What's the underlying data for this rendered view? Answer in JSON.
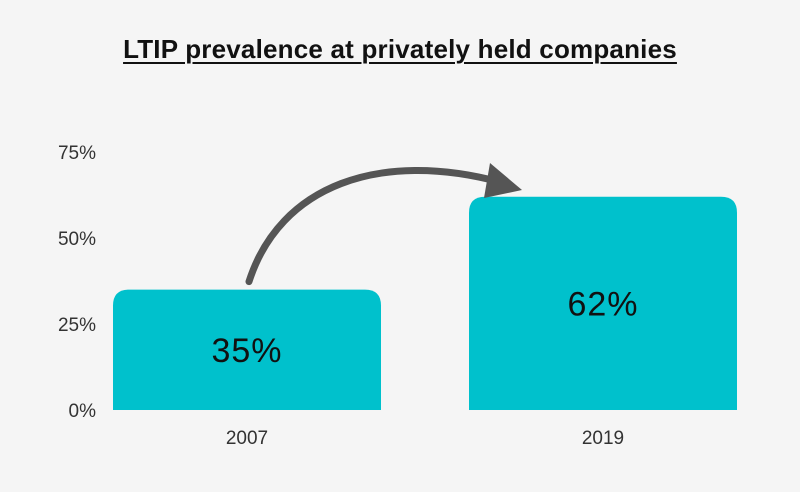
{
  "chart_data": {
    "type": "bar",
    "title": "LTIP prevalence at privately held companies",
    "categories": [
      "2007",
      "2019"
    ],
    "values": [
      35,
      62
    ],
    "data_labels": [
      "35%",
      "62%"
    ],
    "ylim": [
      0,
      75
    ],
    "yticks": [
      0,
      25,
      50,
      75
    ],
    "ytick_labels": [
      "0%",
      "25%",
      "50%",
      "75%"
    ],
    "xlabel": "",
    "ylabel": "",
    "grid": false,
    "legend": "none",
    "bar_color": "#00c1cc",
    "arrow_color": "#555555",
    "annotation": "arrow from 2007 bar to 2019 bar"
  }
}
